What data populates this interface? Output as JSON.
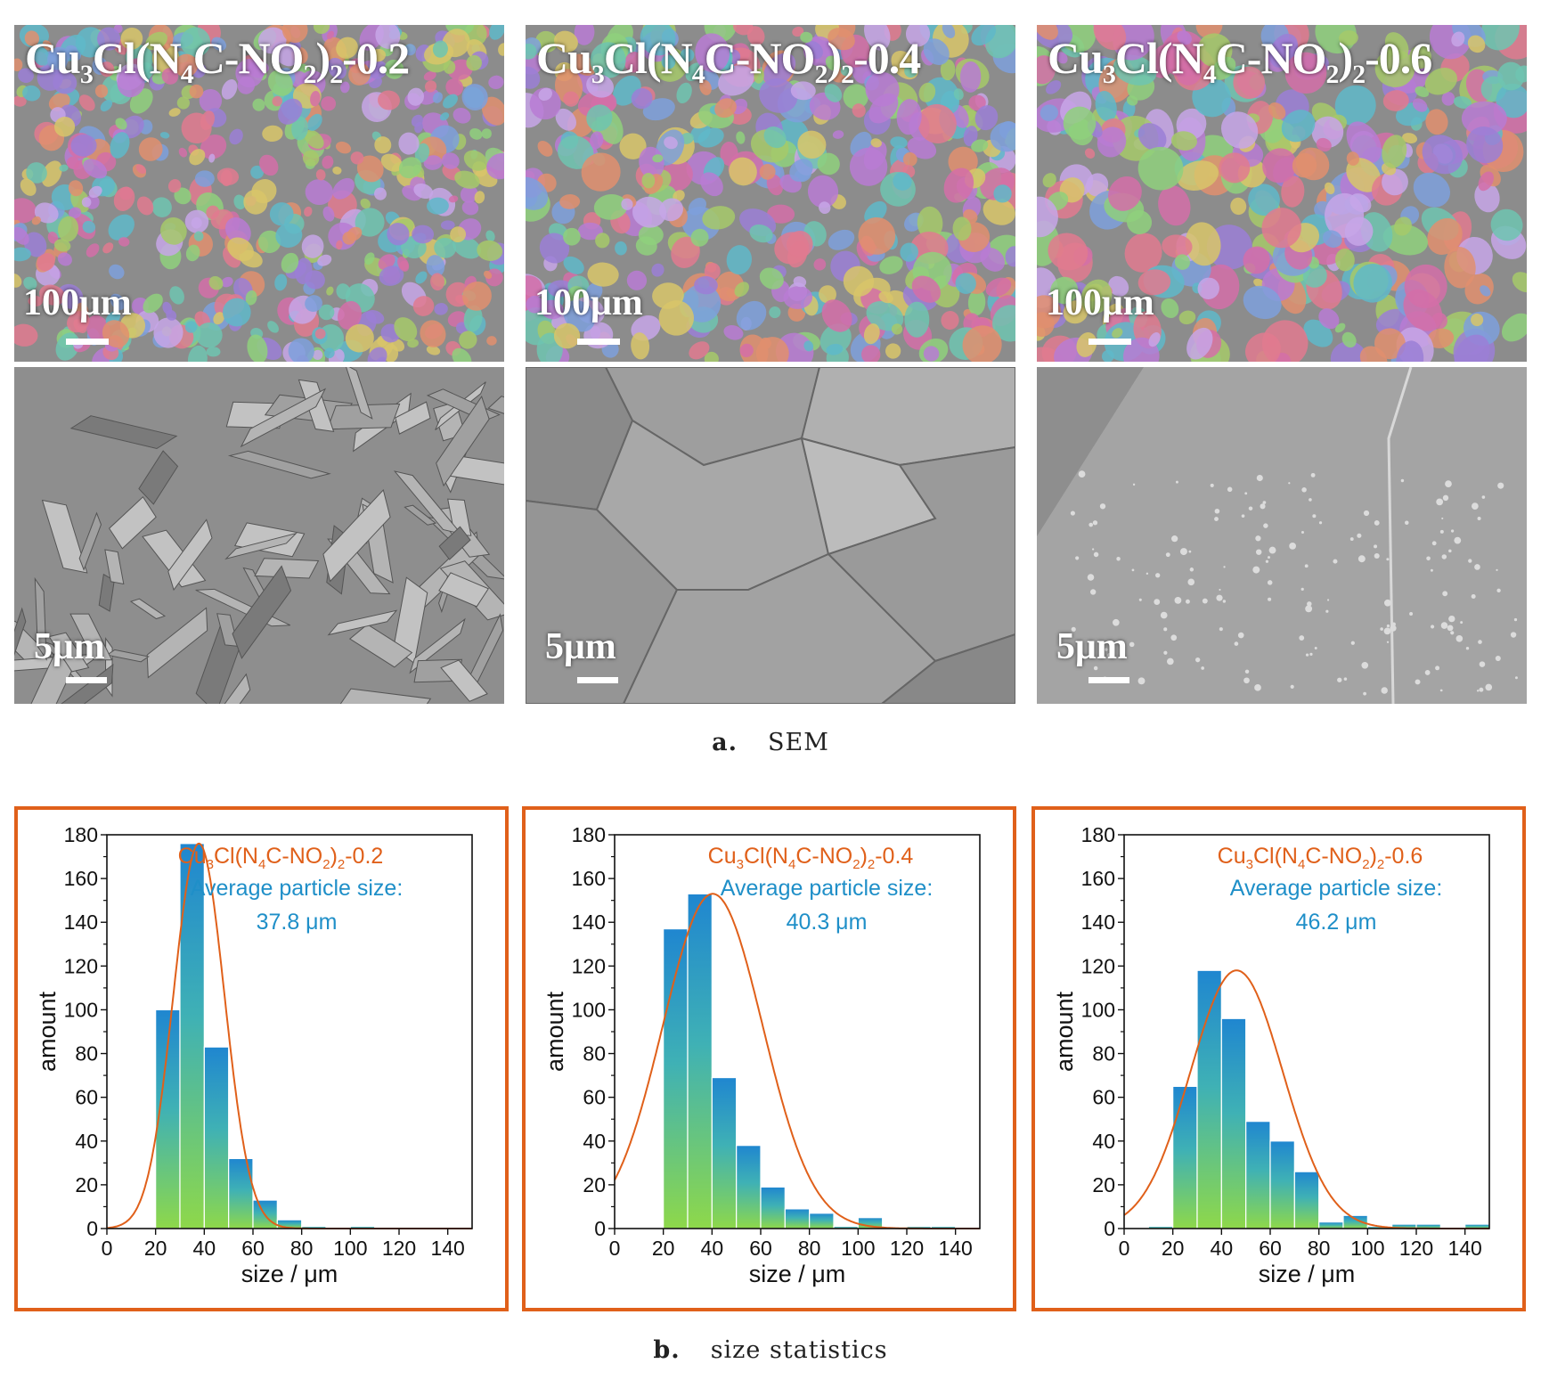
{
  "sem": {
    "caption_letter": "a.",
    "caption_text": "SEM",
    "samples": [
      {
        "label_parts": [
          "Cu",
          "3",
          "Cl(N",
          "4",
          "C-NO",
          "2",
          ")",
          "2",
          "-0.2"
        ],
        "top_scale": "100μm",
        "bottom_scale": "5μm"
      },
      {
        "label_parts": [
          "Cu",
          "3",
          "Cl(N",
          "4",
          "C-NO",
          "2",
          ")",
          "2",
          "-0.4"
        ],
        "top_scale": "100μm",
        "bottom_scale": "5μm"
      },
      {
        "label_parts": [
          "Cu",
          "3",
          "Cl(N",
          "4",
          "C-NO",
          "2",
          ")",
          "2",
          "-0.6"
        ],
        "top_scale": "100μm",
        "bottom_scale": "5μm"
      }
    ]
  },
  "stats": {
    "caption_letter": "b.",
    "caption_text": "size statistics"
  },
  "colors": {
    "panel_border": "#e0601a",
    "curve": "#e0601a",
    "title": "#e0601a",
    "annotation": "#1f8fc8",
    "bar_top": "#1f86d0",
    "bar_bottom": "#8ed84a"
  },
  "chart_data": [
    {
      "type": "bar",
      "title_parts": [
        "Cu",
        "3",
        "Cl(N",
        "4",
        "C-NO",
        "2",
        ")",
        "2",
        "-0.2"
      ],
      "annotation_line1": "Average particle size:",
      "annotation_line2": "37.8 μm",
      "xlabel": "size / μm",
      "ylabel": "amount",
      "xlim": [
        0,
        150
      ],
      "ylim": [
        0,
        180
      ],
      "xticks": [
        0,
        20,
        40,
        60,
        80,
        100,
        120,
        140
      ],
      "yticks": [
        0,
        20,
        40,
        60,
        80,
        100,
        120,
        140,
        160,
        180
      ],
      "bin_width": 10,
      "bins": [
        {
          "x": 20,
          "value": 100
        },
        {
          "x": 30,
          "value": 176
        },
        {
          "x": 40,
          "value": 83
        },
        {
          "x": 50,
          "value": 32
        },
        {
          "x": 60,
          "value": 13
        },
        {
          "x": 70,
          "value": 4
        },
        {
          "x": 80,
          "value": 1
        },
        {
          "x": 100,
          "value": 1
        }
      ],
      "fit": {
        "type": "gaussian",
        "mean": 37.8,
        "sigma": 10.5,
        "peak": 176
      }
    },
    {
      "type": "bar",
      "title_parts": [
        "Cu",
        "3",
        "Cl(N",
        "4",
        "C-NO",
        "2",
        ")",
        "2",
        "-0.4"
      ],
      "annotation_line1": "Average particle size:",
      "annotation_line2": "40.3 μm",
      "xlabel": "size / μm",
      "ylabel": "amount",
      "xlim": [
        0,
        150
      ],
      "ylim": [
        0,
        180
      ],
      "xticks": [
        0,
        20,
        40,
        60,
        80,
        100,
        120,
        140
      ],
      "yticks": [
        0,
        20,
        40,
        60,
        80,
        100,
        120,
        140,
        160,
        180
      ],
      "bin_width": 10,
      "bins": [
        {
          "x": 20,
          "value": 137
        },
        {
          "x": 30,
          "value": 153
        },
        {
          "x": 40,
          "value": 69
        },
        {
          "x": 50,
          "value": 38
        },
        {
          "x": 60,
          "value": 19
        },
        {
          "x": 70,
          "value": 9
        },
        {
          "x": 80,
          "value": 7
        },
        {
          "x": 90,
          "value": 1
        },
        {
          "x": 100,
          "value": 5
        },
        {
          "x": 110,
          "value": 0
        },
        {
          "x": 120,
          "value": 1
        },
        {
          "x": 130,
          "value": 1
        }
      ],
      "fit": {
        "type": "gaussian",
        "mean": 40.3,
        "sigma": 20.5,
        "peak": 153
      }
    },
    {
      "type": "bar",
      "title_parts": [
        "Cu",
        "3",
        "Cl(N",
        "4",
        "C-NO",
        "2",
        ")",
        "2",
        "-0.6"
      ],
      "annotation_line1": "Average particle size:",
      "annotation_line2": "46.2 μm",
      "xlabel": "size / μm",
      "ylabel": "amount",
      "xlim": [
        0,
        150
      ],
      "ylim": [
        0,
        180
      ],
      "xticks": [
        0,
        20,
        40,
        60,
        80,
        100,
        120,
        140
      ],
      "yticks": [
        0,
        20,
        40,
        60,
        80,
        100,
        120,
        140,
        160,
        180
      ],
      "bin_width": 10,
      "bins": [
        {
          "x": 10,
          "value": 1
        },
        {
          "x": 20,
          "value": 65
        },
        {
          "x": 30,
          "value": 118
        },
        {
          "x": 40,
          "value": 96
        },
        {
          "x": 50,
          "value": 49
        },
        {
          "x": 60,
          "value": 40
        },
        {
          "x": 70,
          "value": 26
        },
        {
          "x": 80,
          "value": 3
        },
        {
          "x": 90,
          "value": 6
        },
        {
          "x": 100,
          "value": 1
        },
        {
          "x": 110,
          "value": 2
        },
        {
          "x": 120,
          "value": 2
        },
        {
          "x": 140,
          "value": 2
        }
      ],
      "fit": {
        "type": "gaussian",
        "mean": 46.2,
        "sigma": 19,
        "peak": 118
      }
    }
  ]
}
